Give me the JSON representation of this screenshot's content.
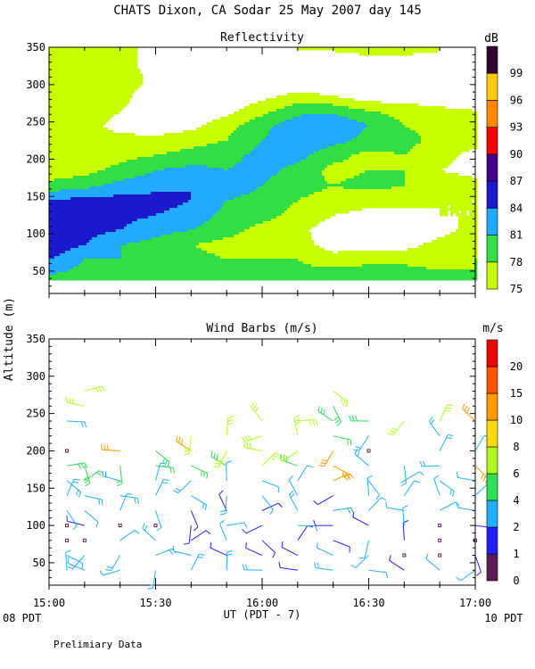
{
  "header": {
    "title": "CHATS Dixon, CA  Sodar  25 May 2007  day 145",
    "shared_ylabel": "Altitude (m)",
    "xlabel": "UT  (PDT - 7)",
    "local_start": "08 PDT",
    "local_end": "10 PDT",
    "footer": "Prelimiary Data"
  },
  "chart_data": [
    {
      "type": "heatmap",
      "title": "Reflectivity",
      "ylabel": "Altitude (m)",
      "xlabel": "UT  (PDT - 7)",
      "x_ticks": [
        "15:00",
        "15:30",
        "16:00",
        "16:30",
        "17:00"
      ],
      "x_range_hours": [
        15.0,
        17.0
      ],
      "y_ticks": [
        50,
        100,
        150,
        200,
        250,
        300,
        350
      ],
      "ylim": [
        20,
        350
      ],
      "grid": false,
      "colorbar": {
        "unit": "dB",
        "ticks": [
          75,
          78,
          81,
          84,
          87,
          90,
          93,
          96,
          99
        ],
        "colors": [
          "#c8ff00",
          "#33dd44",
          "#22aaff",
          "#1a1acc",
          "#440088",
          "#ff0000",
          "#ff8800",
          "#ffcc00",
          "#330033"
        ],
        "blank_below": "white"
      },
      "x_time": [
        "15:00",
        "15:10",
        "15:20",
        "15:30",
        "15:40",
        "15:50",
        "16:00",
        "16:10",
        "16:20",
        "16:30",
        "16:40",
        "16:50",
        "17:00"
      ],
      "y_altitude": [
        45,
        65,
        85,
        105,
        125,
        145,
        165,
        185,
        205,
        225,
        245,
        265,
        285,
        305,
        325,
        345
      ],
      "values": [
        [
          81,
          80,
          80,
          80,
          80,
          79,
          79,
          79,
          80,
          80,
          80,
          79,
          78
        ],
        [
          84,
          81,
          81,
          80,
          79,
          78,
          78,
          78,
          76,
          77,
          77,
          76,
          78
        ],
        [
          86,
          84,
          81,
          80,
          78,
          77,
          77,
          76,
          74,
          74,
          74,
          76,
          77
        ],
        [
          87,
          85,
          84,
          82,
          81,
          79,
          77,
          76,
          73,
          72,
          72,
          74,
          76
        ],
        [
          87,
          86,
          85,
          84,
          83,
          80,
          79,
          77,
          75,
          74,
          74,
          75,
          75
        ],
        [
          84,
          85,
          85,
          85,
          84,
          81,
          80,
          78,
          77,
          76,
          76,
          75,
          75
        ],
        [
          79,
          80,
          82,
          83,
          84,
          83,
          81,
          79,
          78,
          79,
          78,
          77,
          76
        ],
        [
          76,
          77,
          79,
          81,
          82,
          81,
          82,
          80,
          77,
          78,
          78,
          75,
          74
        ],
        [
          75,
          76,
          77,
          78,
          79,
          80,
          82,
          82,
          79,
          77,
          78,
          76,
          74
        ],
        [
          75,
          76,
          76,
          76,
          77,
          78,
          81,
          84,
          82,
          80,
          79,
          77,
          76
        ],
        [
          77,
          76,
          74,
          73,
          74,
          77,
          80,
          83,
          84,
          81,
          78,
          77,
          76
        ],
        [
          78,
          77,
          75,
          73,
          72,
          74,
          77,
          80,
          80,
          78,
          77,
          76,
          75
        ],
        [
          76,
          78,
          76,
          73,
          72,
          72,
          74,
          76,
          75,
          73,
          73,
          72,
          72
        ],
        [
          75,
          78,
          77,
          74,
          72,
          72,
          72,
          72,
          72,
          72,
          72,
          72,
          72
        ],
        [
          75,
          77,
          76,
          74,
          72,
          72,
          72,
          72,
          72,
          72,
          72,
          72,
          72
        ],
        [
          76,
          78,
          76,
          74,
          72,
          72,
          72,
          75,
          75,
          76,
          76,
          75,
          74
        ]
      ]
    },
    {
      "type": "scatter",
      "subtype": "wind_barbs",
      "title": "Wind Barbs (m/s)",
      "ylabel": "Altitude (m)",
      "xlabel": "UT  (PDT - 7)",
      "x_ticks": [
        "15:00",
        "15:30",
        "16:00",
        "16:30",
        "17:00"
      ],
      "x_range_hours": [
        15.0,
        17.0
      ],
      "y_ticks": [
        50,
        100,
        150,
        200,
        250,
        300,
        350
      ],
      "ylim": [
        20,
        350
      ],
      "grid": false,
      "colorbar": {
        "unit": "m/s",
        "ticks": [
          0,
          1,
          2,
          4,
          6,
          8,
          10,
          15,
          20
        ],
        "colors": [
          "#5a1a5a",
          "#2020ff",
          "#20b0ff",
          "#30dd55",
          "#b0ff20",
          "#ffdd00",
          "#ff9900",
          "#ff5500",
          "#ee0000"
        ]
      },
      "x_time": [
        "15:00",
        "15:10",
        "15:20",
        "15:30",
        "15:40",
        "15:50",
        "16:00",
        "16:10",
        "16:20",
        "16:30",
        "16:40",
        "16:50",
        "17:00"
      ],
      "y_altitude": [
        40,
        60,
        80,
        100,
        120,
        140,
        160,
        180,
        200,
        220,
        240,
        260,
        280
      ],
      "speed": [
        [
          2.0,
          2.5,
          2.5,
          3.0,
          3.5,
          3.5,
          3.5,
          1.5,
          3.5,
          2.5,
          1.5,
          2.5,
          2.5
        ],
        [
          2.5,
          3.0,
          3.5,
          3.0,
          2.0,
          1.5,
          1.5,
          1.5,
          2.5,
          2.5,
          0.5,
          0.5,
          1.5
        ],
        [
          0.5,
          0.5,
          2.0,
          3.0,
          1.5,
          2.0,
          1.5,
          1.5,
          1.5,
          2.5,
          1.5,
          0.5,
          0.5
        ],
        [
          0.5,
          1.5,
          0.5,
          0.5,
          1.5,
          2.0,
          1.5,
          2.5,
          1.5,
          1.0,
          2.0,
          0.5,
          1.5
        ],
        [
          2.0,
          2.0,
          2.0,
          2.0,
          1.5,
          1.5,
          1.5,
          3.0,
          3.5,
          2.0,
          2.0,
          2.5,
          2.0
        ],
        [
          3.0,
          3.0,
          3.0,
          3.0,
          3.0,
          3.0,
          2.5,
          2.0,
          1.5,
          2.5,
          2.5,
          2.5,
          2.5
        ],
        [
          3.5,
          4.5,
          3.0,
          3.5,
          3.0,
          2.5,
          2.5,
          2.5,
          12.0,
          2.0,
          2.5,
          3.0,
          2.5
        ],
        [
          5.0,
          5.5,
          4.5,
          4.5,
          5.0,
          5.5,
          6.0,
          5.5,
          14.0,
          3.0,
          3.0,
          3.0,
          14.0
        ],
        [
          0.5,
          6.0,
          13.0,
          5.5,
          14.0,
          6.5,
          6.5,
          6.0,
          13.0,
          0.5,
          3.0,
          3.0,
          2.5
        ],
        [
          3.0,
          3.5,
          4.0,
          4.0,
          6.0,
          7.0,
          7.0,
          6.5,
          4.0,
          3.5,
          3.0,
          3.0,
          3.5
        ],
        [
          3.5,
          3.5,
          3.5,
          3.0,
          4.5,
          7.0,
          7.5,
          6.5,
          5.0,
          5.5,
          6.0,
          6.0,
          12.0
        ],
        [
          3.5,
          6.0,
          3.5,
          3.5,
          5.0,
          7.0,
          6.5,
          5.5,
          5.5,
          6.5,
          6.5,
          12.0,
          12.0
        ],
        [
          3.5,
          6.0,
          6.0,
          5.0,
          5.0,
          6.0,
          7.0,
          13.0,
          6.0,
          6.0,
          6.0,
          6.0,
          6.0
        ]
      ],
      "shown": [
        [
          1,
          1,
          1,
          1,
          1,
          1,
          1,
          1,
          1,
          1,
          1,
          1,
          1
        ],
        [
          1,
          1,
          1,
          1,
          1,
          1,
          1,
          1,
          1,
          1,
          1,
          1,
          1
        ],
        [
          1,
          1,
          1,
          1,
          1,
          1,
          1,
          1,
          1,
          1,
          1,
          1,
          1
        ],
        [
          1,
          1,
          1,
          1,
          1,
          1,
          1,
          1,
          1,
          1,
          1,
          1,
          1
        ],
        [
          1,
          1,
          1,
          1,
          1,
          1,
          1,
          1,
          1,
          1,
          1,
          1,
          1
        ],
        [
          1,
          1,
          1,
          1,
          1,
          1,
          1,
          1,
          1,
          1,
          1,
          1,
          1
        ],
        [
          1,
          1,
          1,
          1,
          1,
          1,
          1,
          1,
          1,
          1,
          1,
          1,
          1
        ],
        [
          1,
          1,
          1,
          1,
          1,
          1,
          1,
          1,
          1,
          1,
          1,
          1,
          1
        ],
        [
          1,
          0,
          1,
          1,
          1,
          1,
          1,
          1,
          1,
          1,
          0,
          1,
          1
        ],
        [
          0,
          0,
          0,
          0,
          1,
          1,
          1,
          1,
          1,
          1,
          0,
          1,
          0
        ],
        [
          1,
          0,
          0,
          0,
          0,
          0,
          1,
          1,
          1,
          1,
          1,
          1,
          1
        ],
        [
          0,
          1,
          0,
          0,
          0,
          0,
          0,
          0,
          1,
          0,
          0,
          0,
          0
        ],
        [
          0,
          1,
          0,
          0,
          0,
          0,
          0,
          0,
          1,
          0,
          0,
          0,
          0
        ]
      ]
    }
  ]
}
